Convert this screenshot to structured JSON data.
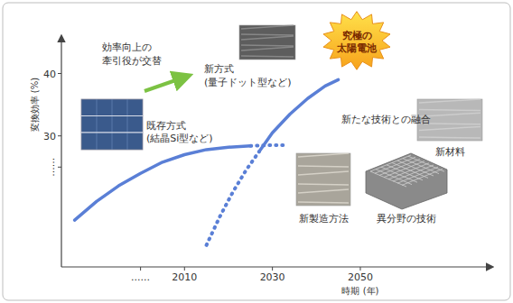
{
  "chart_data": {
    "type": "line",
    "xlabel": "時期 (年)",
    "ylabel": "変換効率 (%)",
    "xlim": [
      1982,
      2080
    ],
    "ylim": [
      9,
      46
    ],
    "xticks": [
      {
        "value": 2000,
        "label": "......"
      },
      2010,
      2030,
      2050
    ],
    "yticks": [
      {
        "value": 25,
        "label": "......"
      },
      30,
      40
    ],
    "grid": false,
    "series": [
      {
        "color": "#5a7fd6",
        "line_style": "solid",
        "x": [
          1985,
          1990,
          1995,
          2000,
          2005,
          2010,
          2015,
          2020,
          2025
        ],
        "values": [
          16.5,
          19.5,
          22,
          24,
          25.8,
          27,
          27.8,
          28.2,
          28.4
        ]
      },
      {
        "color": "#5a7fd6",
        "line_style": "dotted",
        "x": [
          2025,
          2029,
          2033
        ],
        "values": [
          28.4,
          28.5,
          28.5
        ]
      },
      {
        "color": "#5a7fd6",
        "line_style": "dotted",
        "x": [
          2015,
          2018,
          2021,
          2024,
          2027
        ],
        "values": [
          12.5,
          17,
          21,
          24.5,
          27.5
        ]
      },
      {
        "color": "#5a7fd6",
        "line_style": "solid",
        "x": [
          2027,
          2030,
          2034,
          2038,
          2042,
          2045
        ],
        "values": [
          27.5,
          30.5,
          33.5,
          36,
          38,
          39
        ]
      }
    ],
    "annotations": [
      {
        "lines": [
          "効率向上の",
          "牽引役が交替"
        ]
      },
      {
        "lines": [
          "新方式",
          "(量子ドット型など)"
        ]
      },
      {
        "lines": [
          "既存方式",
          "(結晶Si型など)"
        ]
      },
      {
        "lines": [
          "究極の",
          "太陽電池"
        ]
      },
      {
        "lines": [
          "新たな技術との融合"
        ]
      },
      {
        "lines": [
          "新材料"
        ]
      },
      {
        "lines": [
          "新製造方法"
        ]
      },
      {
        "lines": [
          "異分野の技術"
        ]
      }
    ]
  }
}
